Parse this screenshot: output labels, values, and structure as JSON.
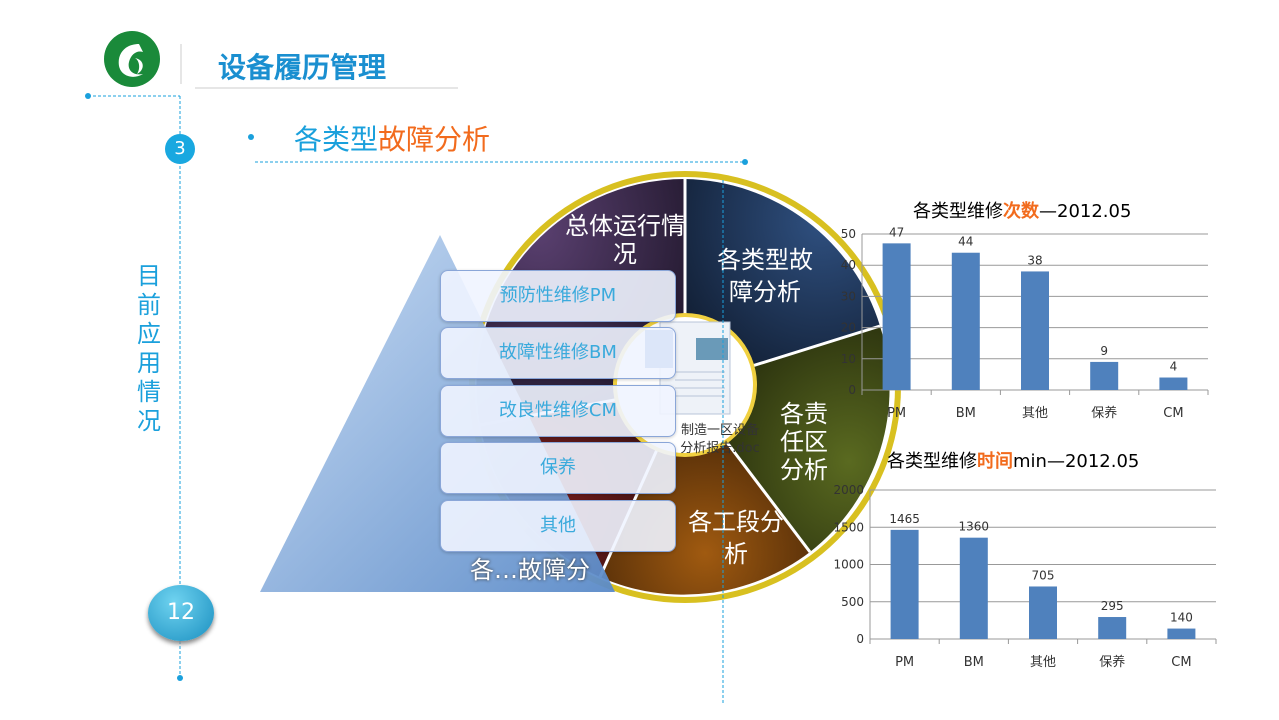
{
  "header": {
    "title": "设备履历管理"
  },
  "side": {
    "vertical_label": [
      "目",
      "前",
      "应",
      "用",
      "情",
      "况"
    ],
    "step_number": "3",
    "page_number": "12"
  },
  "section": {
    "title_pre": "各类型",
    "title_hl": "故障分析"
  },
  "wheel": {
    "segments": [
      "总体运行情况",
      "各类型故障分析",
      "各责任区分析",
      "各工段分析",
      "各…故障分"
    ],
    "center_file": "制造一区设备分析报告.doc"
  },
  "list": {
    "items": [
      "预防性维修PM",
      "故障性维修BM",
      "改良性维修CM",
      "保养",
      "其他"
    ]
  },
  "colors": {
    "accent": "#1aa0dc",
    "highlight": "#f26b1d",
    "bar": "#4f81bd"
  },
  "chart_data": [
    {
      "type": "bar",
      "title_pre": "各类型维修",
      "title_hl": "次数",
      "title_post": "—2012.05",
      "categories": [
        "PM",
        "BM",
        "其他",
        "保养",
        "CM"
      ],
      "values": [
        47,
        44,
        38,
        9,
        4
      ],
      "ylim": [
        0,
        50
      ],
      "yticks": [
        0,
        10,
        20,
        30,
        40,
        50
      ],
      "grid": true
    },
    {
      "type": "bar",
      "title_pre": "各类型维修",
      "title_hl": "时间",
      "title_post": "min—2012.05",
      "categories": [
        "PM",
        "BM",
        "其他",
        "保养",
        "CM"
      ],
      "values": [
        1465,
        1360,
        705,
        295,
        140
      ],
      "ylim": [
        0,
        2000
      ],
      "yticks": [
        0,
        500,
        1000,
        1500,
        2000
      ],
      "grid": true
    }
  ]
}
